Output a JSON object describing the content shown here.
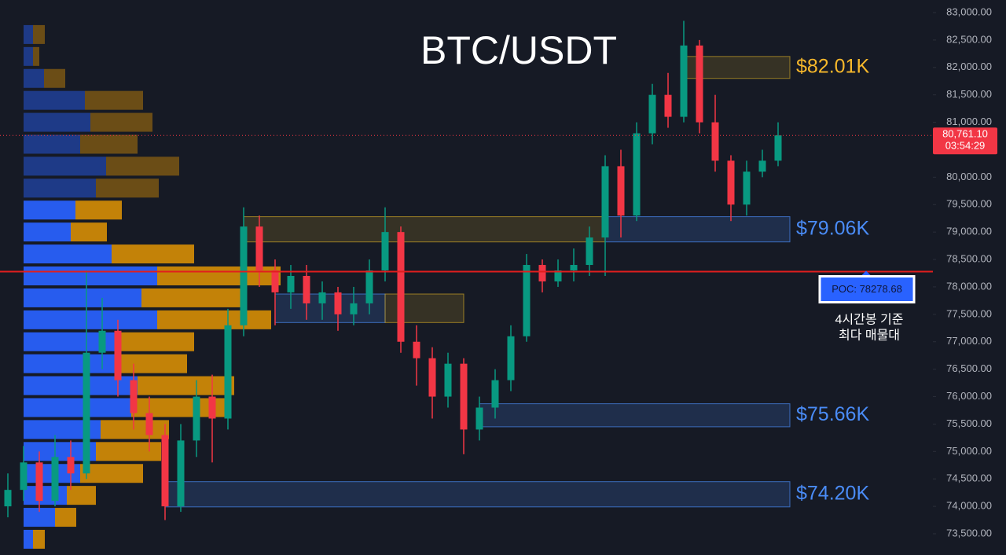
{
  "chart_data": {
    "type": "candlestick",
    "title": "BTC/USDT",
    "open": [
      74000,
      74300,
      74800,
      74100,
      74900,
      74600,
      76800,
      77200,
      76300,
      75700,
      75300,
      74000,
      75200,
      76000,
      75600,
      77300,
      79100,
      78300,
      77900,
      78200,
      77700,
      77900,
      77500,
      77700,
      78300,
      79000,
      77000,
      76700,
      76000,
      76600,
      75400,
      75800,
      76300,
      77100,
      78400,
      78100,
      78300,
      78400,
      78900,
      80200,
      79300,
      80800,
      81500,
      81100,
      82400,
      81000,
      80300,
      79500,
      80100,
      80300
    ],
    "high": [
      74600,
      75100,
      75000,
      75300,
      75200,
      78300,
      77800,
      77400,
      76600,
      76000,
      75500,
      75500,
      76300,
      76400,
      77600,
      79450,
      79300,
      78500,
      78400,
      78400,
      78100,
      78000,
      78000,
      78500,
      79450,
      79100,
      77300,
      76900,
      76800,
      76700,
      76000,
      76500,
      77300,
      78600,
      78500,
      78500,
      78700,
      79100,
      80400,
      80500,
      81000,
      81700,
      81900,
      82850,
      82500,
      81500,
      80400,
      80300,
      80500,
      81000
    ],
    "low": [
      73800,
      74100,
      73900,
      74000,
      74300,
      74500,
      76500,
      76000,
      75400,
      75000,
      73750,
      73900,
      74900,
      74800,
      75400,
      77100,
      78000,
      77300,
      77600,
      77400,
      77400,
      77200,
      77300,
      77500,
      78100,
      76800,
      76200,
      75600,
      75800,
      74950,
      75200,
      75600,
      76100,
      77000,
      77900,
      78000,
      78100,
      78200,
      78200,
      78900,
      79200,
      80600,
      80900,
      81000,
      80800,
      80100,
      79200,
      79300,
      80000,
      80200
    ],
    "close": [
      74300,
      74800,
      74100,
      74900,
      74600,
      76800,
      77200,
      76300,
      75700,
      75300,
      74000,
      75200,
      76000,
      75600,
      77300,
      79100,
      78300,
      77900,
      78200,
      77700,
      77900,
      77500,
      77700,
      78300,
      79000,
      77000,
      76700,
      76000,
      76600,
      75400,
      75800,
      76300,
      77100,
      78400,
      78100,
      78300,
      78400,
      78900,
      80200,
      79300,
      80800,
      81500,
      81100,
      82400,
      81000,
      80300,
      79500,
      80100,
      80300,
      80761.1
    ],
    "up_color": "#089981",
    "down_color": "#f23645",
    "ylim": [
      73350,
      83200
    ],
    "yticks": [
      {
        "value": 83000,
        "label": "83,000.00"
      },
      {
        "value": 82500,
        "label": "82,500.00"
      },
      {
        "value": 82000,
        "label": "82,000.00"
      },
      {
        "value": 81500,
        "label": "81,500.00"
      },
      {
        "value": 81000,
        "label": "81,000.00"
      },
      {
        "value": 80500,
        "label": "80,500.00"
      },
      {
        "value": 80000,
        "label": "80,000.00"
      },
      {
        "value": 79500,
        "label": "79,500.00"
      },
      {
        "value": 79000,
        "label": "79,000.00"
      },
      {
        "value": 78500,
        "label": "78,500.00"
      },
      {
        "value": 78000,
        "label": "78,000.00"
      },
      {
        "value": 77500,
        "label": "77,500.00"
      },
      {
        "value": 77000,
        "label": "77,000.00"
      },
      {
        "value": 76500,
        "label": "76,500.00"
      },
      {
        "value": 76000,
        "label": "76,000.00"
      },
      {
        "value": 75500,
        "label": "75,500.00"
      },
      {
        "value": 75000,
        "label": "75,000.00"
      },
      {
        "value": 74500,
        "label": "74,500.00"
      },
      {
        "value": 74000,
        "label": "74,000.00"
      },
      {
        "value": 73500,
        "label": "73,500.00"
      }
    ],
    "current_price": {
      "value": 80761.1,
      "label": "80,761.10",
      "timer": "03:54:29"
    },
    "poc": {
      "value": 78278.68,
      "label": "POC: 78278.68",
      "note": [
        "4시간봉 기준",
        "최다 매물대"
      ]
    },
    "zones": [
      {
        "label": "$82.01K",
        "low": 81800,
        "high": 82200,
        "start": 43,
        "end": 50,
        "color": "#c9a227"
      },
      {
        "low": 78820,
        "high": 79280,
        "start": 15,
        "end": 38,
        "color": "#c9a227"
      },
      {
        "label": "$79.06K",
        "low": 78820,
        "high": 79280,
        "start": 38,
        "end": 50,
        "color": "#4a8cf7"
      },
      {
        "low": 77350,
        "high": 77870,
        "start": 17,
        "end": 24,
        "color": "#4a8cf7"
      },
      {
        "low": 77350,
        "high": 77870,
        "start": 24,
        "end": 29,
        "color": "#c9a227"
      },
      {
        "label": "$75.66K",
        "low": 75450,
        "high": 75870,
        "start": 30,
        "end": 50,
        "color": "#4a8cf7"
      },
      {
        "label": "$74.20K",
        "low": 73990,
        "high": 74450,
        "start": 10,
        "end": 50,
        "color": "#4a8cf7"
      }
    ],
    "volume_profile": {
      "levels": [
        82600,
        82200,
        81800,
        81400,
        81000,
        80600,
        80200,
        79800,
        79400,
        79000,
        78600,
        78200,
        77800,
        77400,
        77000,
        76600,
        76200,
        75800,
        75400,
        75000,
        74600,
        74200,
        73800,
        73400
      ],
      "buy": [
        12,
        12,
        26,
        78,
        85,
        72,
        105,
        92,
        66,
        60,
        112,
        170,
        150,
        170,
        118,
        117,
        145,
        137,
        98,
        92,
        72,
        55,
        40,
        12
      ],
      "sell": [
        15,
        8,
        27,
        74,
        79,
        73,
        93,
        80,
        59,
        46,
        105,
        157,
        132,
        145,
        99,
        91,
        123,
        123,
        87,
        83,
        80,
        37,
        27,
        15
      ],
      "buy_color": "#2962ff",
      "sell_color": "#f5a000"
    }
  }
}
